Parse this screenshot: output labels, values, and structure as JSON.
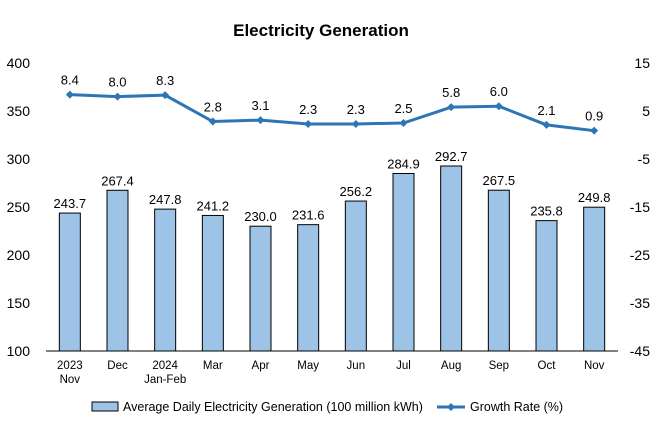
{
  "chart_data": {
    "type": "bar+line",
    "title": "Electricity Generation",
    "categories": [
      [
        "2023",
        "Nov"
      ],
      [
        "Dec"
      ],
      [
        "2024",
        "Jan-Feb"
      ],
      [
        "Mar"
      ],
      [
        "Apr"
      ],
      [
        "May"
      ],
      [
        "Jun"
      ],
      [
        "Jul"
      ],
      [
        "Aug"
      ],
      [
        "Sep"
      ],
      [
        "Oct"
      ],
      [
        "Nov"
      ]
    ],
    "series": [
      {
        "name": "Average Daily Electricity Generation (100 million kWh)",
        "type": "bar",
        "axis": "left",
        "values": [
          243.7,
          267.4,
          247.8,
          241.2,
          230.0,
          231.6,
          256.2,
          284.9,
          292.7,
          267.5,
          235.8,
          249.8
        ],
        "labels": [
          "243.7",
          "267.4",
          "247.8",
          "241.2",
          "230.0",
          "231.6",
          "256.2",
          "284.9",
          "292.7",
          "267.5",
          "235.8",
          "249.8"
        ]
      },
      {
        "name": "Growth Rate (%)",
        "type": "line",
        "axis": "right",
        "values": [
          8.4,
          8.0,
          8.3,
          2.8,
          3.1,
          2.3,
          2.3,
          2.5,
          5.8,
          6.0,
          2.1,
          0.9
        ],
        "labels": [
          "8.4",
          "8.0",
          "8.3",
          "2.8",
          "3.1",
          "2.3",
          "2.3",
          "2.5",
          "5.8",
          "6.0",
          "2.1",
          "0.9"
        ]
      }
    ],
    "y_left": {
      "ylim": [
        100,
        400
      ],
      "ticks": [
        "100",
        "150",
        "200",
        "250",
        "300",
        "350",
        "400"
      ]
    },
    "y_right": {
      "ylim": [
        -45,
        15
      ],
      "ticks": [
        "-45",
        "-35",
        "-25",
        "-15",
        "-5",
        "5",
        "15"
      ]
    },
    "legend_position": "bottom",
    "colors": {
      "bar_fill": "#9dc3e6",
      "bar_stroke": "#000000",
      "line": "#2e75b6"
    }
  }
}
